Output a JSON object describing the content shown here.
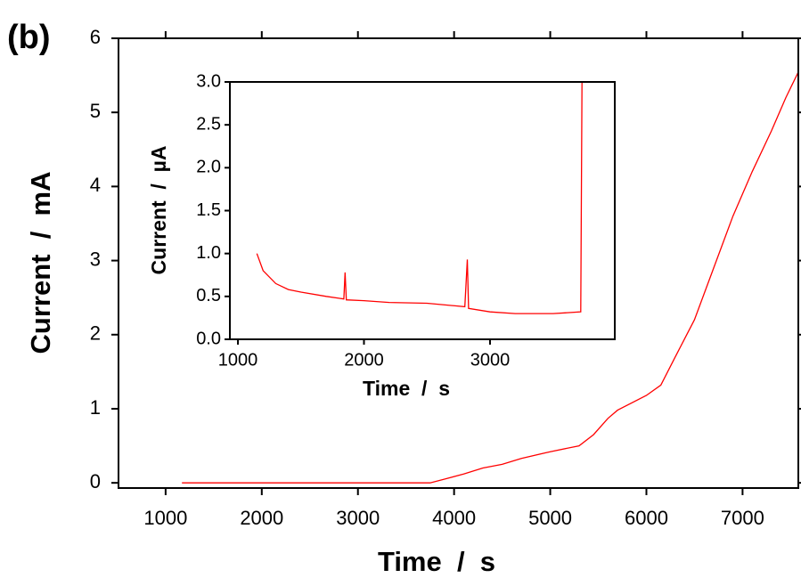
{
  "chart_data": [
    {
      "type": "line",
      "annotation": "(b)",
      "x_label": "Time  /  s",
      "y_label": "Current  /  mA",
      "color": "#ff0000",
      "x": [
        1170,
        3750,
        3900,
        4100,
        4300,
        4500,
        4700,
        5000,
        5300,
        5450,
        5600,
        5700,
        6000,
        6150,
        6300,
        6500,
        6700,
        6900,
        7100,
        7300,
        7450,
        7600
      ],
      "values": [
        0,
        0,
        0.05,
        0.12,
        0.2,
        0.25,
        0.33,
        0.42,
        0.5,
        0.65,
        0.87,
        0.98,
        1.18,
        1.32,
        1.7,
        2.2,
        2.9,
        3.6,
        4.2,
        4.75,
        5.2,
        5.6
      ],
      "xlim": [
        510,
        7580
      ],
      "xticks": [
        1000,
        2000,
        3000,
        4000,
        5000,
        6000,
        7000
      ],
      "ylim": [
        -0.07,
        6
      ],
      "yticks": [
        0,
        1,
        2,
        3,
        4,
        5,
        6
      ]
    },
    {
      "type": "line",
      "x_label": "Time  /  s",
      "y_label": "Current  /  µA",
      "color": "#ff0000",
      "x": [
        1150,
        1200,
        1300,
        1400,
        1500,
        1700,
        1840,
        1850,
        1860,
        2000,
        2200,
        2500,
        2800,
        2820,
        2830,
        3000,
        3200,
        3500,
        3720,
        3730
      ],
      "values": [
        1.0,
        0.8,
        0.65,
        0.58,
        0.55,
        0.5,
        0.47,
        0.78,
        0.46,
        0.45,
        0.43,
        0.42,
        0.38,
        0.93,
        0.36,
        0.32,
        0.3,
        0.3,
        0.32,
        3.0
      ],
      "xlim": [
        936,
        3990
      ],
      "xticks": [
        1000,
        2000,
        3000
      ],
      "ylim": [
        0,
        3.0
      ],
      "yticks": [
        {
          "value": 0,
          "label": "0.0"
        },
        0.5,
        {
          "value": 1,
          "label": "1.0"
        },
        1.5,
        {
          "value": 2,
          "label": "2.0"
        },
        2.5,
        {
          "value": 3,
          "label": "3.0"
        }
      ]
    }
  ]
}
